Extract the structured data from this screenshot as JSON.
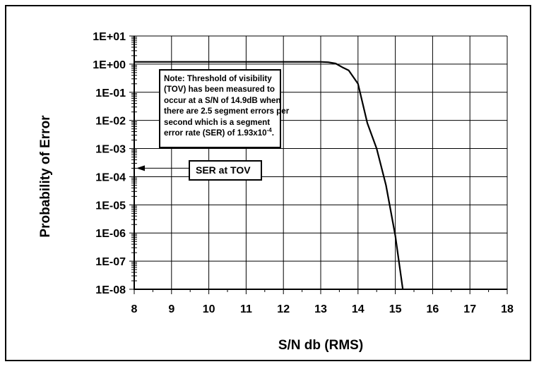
{
  "chart_data": {
    "type": "line",
    "ylabel": "Probability of Error",
    "xlabel": "S/N db (RMS)",
    "xlim": [
      8,
      18
    ],
    "ylim_exponent": [
      -8,
      1
    ],
    "y_scale": "log",
    "grid": true,
    "x_ticks": [
      "8",
      "9",
      "10",
      "11",
      "12",
      "13",
      "14",
      "15",
      "16",
      "17",
      "18"
    ],
    "y_ticks": [
      "1E+01",
      "1E+00",
      "1E-01",
      "1E-02",
      "1E-03",
      "1E-04",
      "1E-05",
      "1E-06",
      "1E-07",
      "1E-08"
    ],
    "series": [
      {
        "x": [
          8,
          13.0,
          13.2,
          13.4,
          13.6,
          13.75,
          14.0,
          14.25,
          14.5,
          14.75,
          15.0,
          15.2
        ],
        "y": [
          1.2,
          1.2,
          1.17,
          1.05,
          0.75,
          0.6,
          0.2,
          0.008,
          0.001,
          5e-05,
          8e-07,
          1e-08
        ]
      }
    ],
    "annotations": {
      "note_lines": [
        "Note: Threshold of visibility",
        "(TOV) has been measured to",
        "occur at a S/N of 14.9dB when",
        "there are 2.5 segment errors per",
        "second which is a segment"
      ],
      "note_last_line_prefix": "error rate (SER) of 1.93x10",
      "note_last_line_exponent": "-4",
      "note_last_line_suffix": ".",
      "ser_label": "SER at TOV",
      "ser_value": 0.0002
    }
  }
}
